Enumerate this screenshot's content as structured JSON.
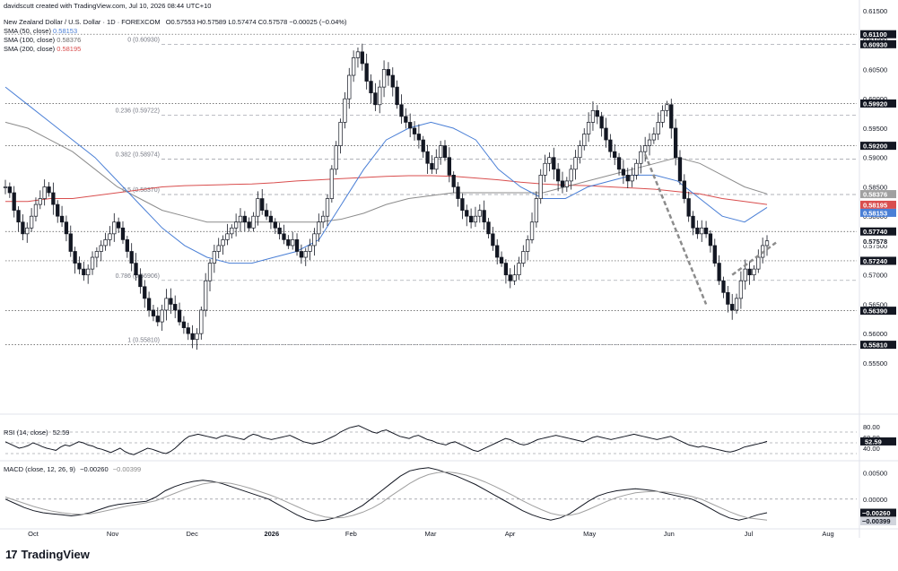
{
  "header": {
    "credit": "davidscutt created with TradingView.com, Jul 10, 2026 08:44 UTC+10",
    "symbol_line": "New Zealand Dollar / U.S. Dollar · 1D · FOREXCOM",
    "ohlc": "O0.57553 H0.57589 L0.57474 C0.57578 −0.00025 (−0.04%)",
    "sma50": "SMA (50, close)",
    "sma50_value": "0.58153",
    "sma100": "SMA (100, close)",
    "sma100_value": "0.58376",
    "sma200": "SMA (200, close)",
    "sma200_value": "0.58195"
  },
  "brand": {
    "name": "TradingView",
    "logo_glyph": "17"
  },
  "colors": {
    "up": "#131722",
    "down": "#131722",
    "sma50": "#4a7fd6",
    "sma100": "#8c8c8c",
    "sma200": "#d94e4e",
    "grid": "#9598a1",
    "axis_text": "#131722",
    "price_badge": "#131722"
  },
  "chart_data": [
    {
      "type": "candlestick",
      "title": "New Zealand Dollar / U.S. Dollar · 1D · FOREXCOM",
      "x_axis": {
        "ticks": [
          "Oct",
          "Nov",
          "Dec",
          "2026",
          "Feb",
          "Mar",
          "Apr",
          "May",
          "Jun",
          "Jul",
          "Aug"
        ]
      },
      "y_axis": {
        "range": [
          0.553,
          0.615
        ],
        "ticks": [
          "0.61500",
          "0.61000",
          "0.60500",
          "0.60000",
          "0.59500",
          "0.59000",
          "0.58500",
          "0.58000",
          "0.57500",
          "0.57000",
          "0.56500",
          "0.56000",
          "0.55500"
        ]
      },
      "price_labels": [
        {
          "value": "0.61100",
          "style": "dark"
        },
        {
          "value": "0.60930",
          "style": "dark"
        },
        {
          "value": "0.59920",
          "style": "dark"
        },
        {
          "value": "0.59200",
          "style": "dark"
        },
        {
          "value": "0.58376",
          "style": "grey"
        },
        {
          "value": "0.58195",
          "style": "red"
        },
        {
          "value": "0.58153",
          "style": "blue"
        },
        {
          "value": "0.57740",
          "style": "dark"
        },
        {
          "value": "0.57578",
          "style": "plain"
        },
        {
          "value": "0.57240",
          "style": "dark"
        },
        {
          "value": "0.56390",
          "style": "dark"
        },
        {
          "value": "0.55810",
          "style": "dark"
        }
      ],
      "fib_levels": [
        {
          "label": "0 (0.60930)",
          "value": 0.6093
        },
        {
          "label": "0.236 (0.59722)",
          "value": 0.59722
        },
        {
          "label": "0.382 (0.58974)",
          "value": 0.58974
        },
        {
          "label": "0.5 (0.58370)",
          "value": 0.5837
        },
        {
          "label": "0.786 (0.56906)",
          "value": 0.56906
        },
        {
          "label": "1 (0.55810)",
          "value": 0.5581
        }
      ],
      "horizontal_levels": [
        0.611,
        0.5992,
        0.592,
        0.5774,
        0.5724,
        0.5639,
        0.5581
      ],
      "close_series": [
        0.585,
        0.584,
        0.581,
        0.579,
        0.577,
        0.578,
        0.58,
        0.582,
        0.583,
        0.585,
        0.584,
        0.582,
        0.58,
        0.579,
        0.577,
        0.574,
        0.572,
        0.571,
        0.57,
        0.571,
        0.573,
        0.574,
        0.575,
        0.576,
        0.577,
        0.579,
        0.578,
        0.576,
        0.574,
        0.572,
        0.57,
        0.568,
        0.566,
        0.564,
        0.563,
        0.562,
        0.564,
        0.566,
        0.565,
        0.564,
        0.562,
        0.561,
        0.56,
        0.559,
        0.56,
        0.564,
        0.569,
        0.572,
        0.574,
        0.575,
        0.576,
        0.577,
        0.578,
        0.579,
        0.58,
        0.579,
        0.578,
        0.58,
        0.583,
        0.581,
        0.58,
        0.579,
        0.578,
        0.577,
        0.576,
        0.575,
        0.576,
        0.574,
        0.573,
        0.574,
        0.575,
        0.577,
        0.579,
        0.58,
        0.583,
        0.588,
        0.592,
        0.596,
        0.6,
        0.604,
        0.607,
        0.608,
        0.606,
        0.603,
        0.601,
        0.599,
        0.602,
        0.605,
        0.604,
        0.602,
        0.599,
        0.597,
        0.596,
        0.595,
        0.594,
        0.593,
        0.591,
        0.589,
        0.588,
        0.59,
        0.592,
        0.59,
        0.587,
        0.585,
        0.583,
        0.581,
        0.58,
        0.579,
        0.58,
        0.581,
        0.579,
        0.577,
        0.575,
        0.573,
        0.572,
        0.57,
        0.569,
        0.57,
        0.572,
        0.574,
        0.576,
        0.579,
        0.583,
        0.587,
        0.589,
        0.59,
        0.588,
        0.586,
        0.585,
        0.586,
        0.588,
        0.59,
        0.592,
        0.594,
        0.596,
        0.598,
        0.597,
        0.595,
        0.593,
        0.591,
        0.59,
        0.588,
        0.587,
        0.586,
        0.587,
        0.589,
        0.591,
        0.592,
        0.593,
        0.594,
        0.596,
        0.598,
        0.599,
        0.595,
        0.59,
        0.586,
        0.583,
        0.58,
        0.578,
        0.577,
        0.578,
        0.577,
        0.575,
        0.572,
        0.569,
        0.567,
        0.565,
        0.564,
        0.566,
        0.569,
        0.571,
        0.57,
        0.571,
        0.573,
        0.575,
        0.5758
      ],
      "sma50": [
        0.602,
        0.599,
        0.596,
        0.593,
        0.59,
        0.586,
        0.582,
        0.578,
        0.575,
        0.573,
        0.572,
        0.572,
        0.573,
        0.574,
        0.576,
        0.582,
        0.588,
        0.593,
        0.595,
        0.596,
        0.595,
        0.593,
        0.588,
        0.585,
        0.583,
        0.583,
        0.585,
        0.586,
        0.587,
        0.587,
        0.586,
        0.583,
        0.58,
        0.579,
        0.5815
      ],
      "sma100": [
        0.596,
        0.595,
        0.593,
        0.591,
        0.588,
        0.585,
        0.583,
        0.581,
        0.58,
        0.579,
        0.579,
        0.579,
        0.579,
        0.579,
        0.579,
        0.5795,
        0.5805,
        0.582,
        0.583,
        0.5835,
        0.584,
        0.584,
        0.584,
        0.584,
        0.584,
        0.585,
        0.586,
        0.587,
        0.588,
        0.589,
        0.59,
        0.589,
        0.587,
        0.585,
        0.5838
      ],
      "sma200": [
        0.5825,
        0.5825,
        0.583,
        0.583,
        0.5835,
        0.584,
        0.5845,
        0.585,
        0.5852,
        0.5853,
        0.5854,
        0.5855,
        0.5857,
        0.586,
        0.5862,
        0.5864,
        0.5866,
        0.5868,
        0.5869,
        0.5869,
        0.5868,
        0.5865,
        0.5862,
        0.5858,
        0.5855,
        0.5853,
        0.5852,
        0.585,
        0.5848,
        0.5846,
        0.5842,
        0.5838,
        0.583,
        0.5825,
        0.582
      ]
    },
    {
      "type": "line",
      "title": "RSI (14, close)",
      "value_label": "52.59",
      "y_axis": {
        "range": [
          20,
          90
        ],
        "ticks": [
          "80.00",
          "60.00",
          "40.00"
        ]
      },
      "bands": [
        70,
        50,
        30
      ],
      "series": [
        {
          "values": [
            52,
            48,
            44,
            40,
            42,
            45,
            50,
            47,
            43,
            40,
            38,
            36,
            42,
            46,
            44,
            48,
            52,
            50,
            46,
            44,
            40,
            38,
            35,
            32,
            36,
            40,
            34,
            30,
            28,
            32,
            36,
            40,
            38,
            35,
            32,
            30,
            34,
            40,
            48,
            56,
            62,
            64,
            66,
            64,
            62,
            60,
            58,
            62,
            64,
            62,
            60,
            58,
            56,
            62,
            66,
            64,
            60,
            58,
            56,
            58,
            60,
            62,
            64,
            60,
            56,
            52,
            50,
            48,
            50,
            52,
            56,
            60,
            64,
            70,
            74,
            78,
            80,
            82,
            78,
            74,
            70,
            68,
            72,
            74,
            70,
            66,
            62,
            60,
            58,
            62,
            64,
            60,
            56,
            54,
            50,
            48,
            46,
            50,
            52,
            48,
            44,
            40,
            36,
            34,
            38,
            42,
            46,
            50,
            54,
            58,
            56,
            52,
            48,
            46,
            48,
            52,
            56,
            58,
            60,
            62,
            64,
            62,
            60,
            58,
            56,
            54,
            52,
            56,
            60,
            62,
            60,
            58,
            56,
            58,
            60,
            62,
            64,
            66,
            64,
            62,
            60,
            58,
            56,
            58,
            60,
            62,
            58,
            54,
            50,
            46,
            44,
            42,
            44,
            42,
            40,
            38,
            36,
            34,
            33,
            35,
            38,
            42,
            44,
            46,
            48,
            50,
            52.59
          ]
        }
      ]
    },
    {
      "type": "line",
      "title": "MACD (close, 12, 26, 9)",
      "value_labels": [
        "−0.00260",
        "−0.00399"
      ],
      "y_axis": {
        "range": [
          -0.005,
          0.007
        ],
        "ticks": [
          "0.00500",
          "0.00000"
        ]
      },
      "series": [
        {
          "values": [
            0.0,
            -0.0008,
            -0.0016,
            -0.0022,
            -0.0026,
            -0.0028,
            -0.003,
            -0.0032,
            -0.003,
            -0.0026,
            -0.002,
            -0.0014,
            -0.001,
            -0.0008,
            -0.0006,
            -0.0004,
            0.0004,
            0.0016,
            0.0024,
            0.003,
            0.0034,
            0.0036,
            0.0034,
            0.003,
            0.0024,
            0.0018,
            0.0012,
            0.0006,
            0.0,
            -0.001,
            -0.002,
            -0.003,
            -0.0038,
            -0.0042,
            -0.004,
            -0.0036,
            -0.003,
            -0.0022,
            -0.0012,
            0.0002,
            0.0016,
            0.003,
            0.0044,
            0.0054,
            0.0058,
            0.006,
            0.0056,
            0.005,
            0.0044,
            0.0036,
            0.0028,
            0.0018,
            0.0008,
            -0.0002,
            -0.0012,
            -0.0022,
            -0.003,
            -0.0036,
            -0.004,
            -0.0036,
            -0.0028,
            -0.0016,
            -0.0004,
            0.0006,
            0.0012,
            0.0016,
            0.0018,
            0.002,
            0.0018,
            0.0016,
            0.0012,
            0.0008,
            0.0004,
            0.0,
            -0.0008,
            -0.0018,
            -0.0028,
            -0.0036,
            -0.004,
            -0.0036,
            -0.003,
            -0.0026
          ]
        },
        {
          "values": [
            0.0004,
            -0.0002,
            -0.0008,
            -0.0014,
            -0.0019,
            -0.0023,
            -0.0026,
            -0.0028,
            -0.0029,
            -0.0028,
            -0.0025,
            -0.0021,
            -0.0017,
            -0.0013,
            -0.001,
            -0.0007,
            -0.0003,
            0.0004,
            0.0011,
            0.0018,
            0.0024,
            0.0029,
            0.0032,
            0.0032,
            0.003,
            0.0026,
            0.0021,
            0.0015,
            0.0009,
            0.0002,
            -0.0006,
            -0.0014,
            -0.0022,
            -0.0029,
            -0.0034,
            -0.0036,
            -0.0035,
            -0.0031,
            -0.0025,
            -0.0017,
            -0.0007,
            0.0006,
            0.0018,
            0.003,
            0.004,
            0.0047,
            0.0051,
            0.0052,
            0.005,
            0.0046,
            0.004,
            0.0033,
            0.0025,
            0.0016,
            0.0007,
            -0.0003,
            -0.0012,
            -0.002,
            -0.0027,
            -0.0031,
            -0.0031,
            -0.0027,
            -0.002,
            -0.0012,
            -0.0004,
            0.0003,
            0.0008,
            0.0012,
            0.0014,
            0.0015,
            0.0014,
            0.0012,
            0.0009,
            0.0005,
            0.0,
            -0.0008,
            -0.0016,
            -0.0024,
            -0.0031,
            -0.0036,
            -0.0038,
            -0.004
          ]
        }
      ]
    }
  ]
}
